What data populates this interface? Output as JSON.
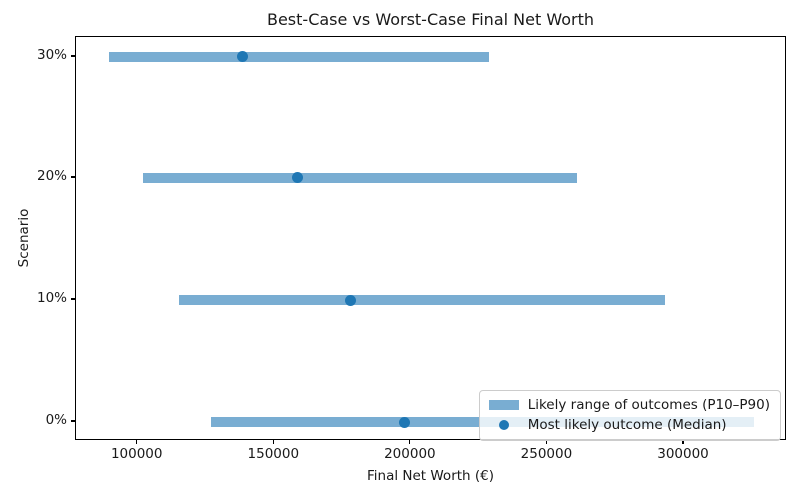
{
  "chart_data": {
    "type": "bar",
    "subtype": "horizontal-range-bars-with-median-markers",
    "title": "Best-Case vs Worst-Case Final Net Worth",
    "xlabel": "Final Net Worth (€)",
    "ylabel": "Scenario",
    "categories": [
      "30%",
      "20%",
      "10%",
      "0%"
    ],
    "series": [
      {
        "name": "Likely range of outcomes (P10–P90)",
        "type": "range",
        "p10": [
          89500,
          102000,
          115000,
          127000
        ],
        "p90": [
          228500,
          261000,
          293000,
          325500
        ]
      },
      {
        "name": "Most likely outcome (Median)",
        "type": "point",
        "values": [
          138500,
          158500,
          178000,
          197500
        ]
      }
    ],
    "xticks": [
      100000,
      150000,
      200000,
      250000,
      300000
    ],
    "xlim": [
      77400,
      337700
    ],
    "legend_position": "lower right",
    "grid": false,
    "colors": {
      "range_bar": "#79add2",
      "median_dot": "#1f77b4",
      "spine": "#000000",
      "text": "#1a1a1a",
      "legend_border": "#cccccc"
    }
  }
}
